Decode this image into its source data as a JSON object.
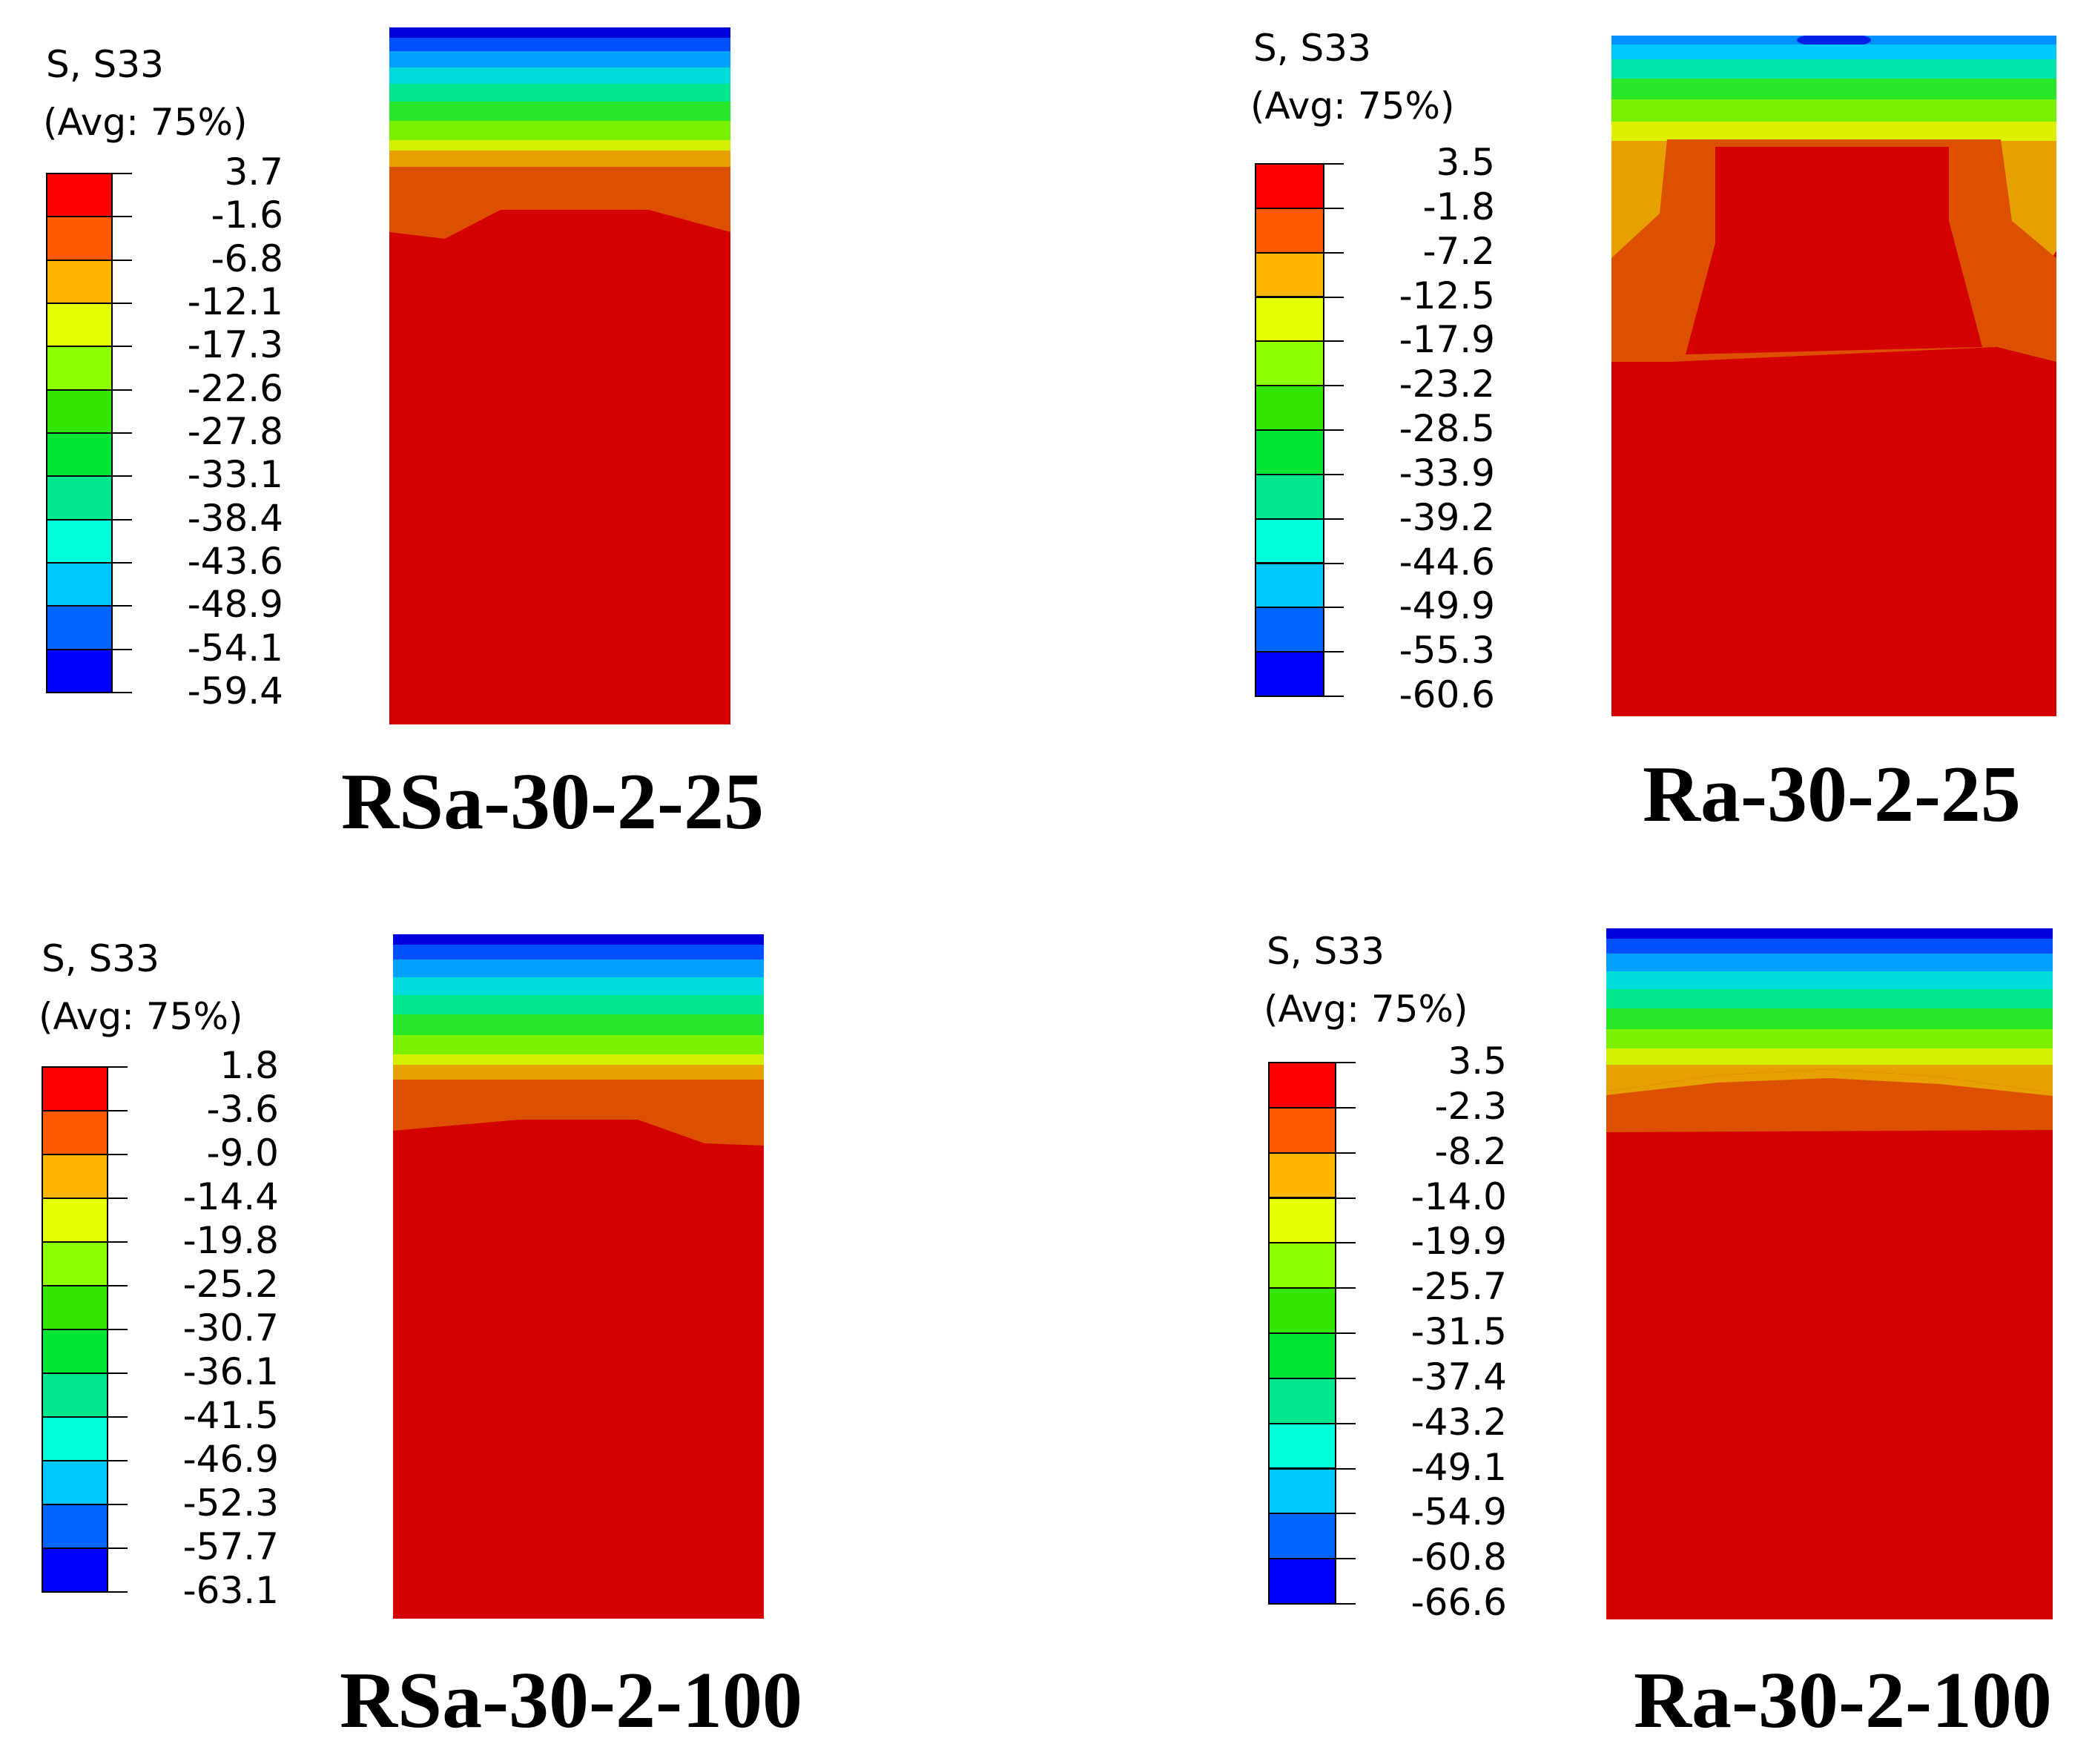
{
  "figure": {
    "panels": [
      {
        "caption": "RSa-30-2-25",
        "legend_title_line1": "S, S33",
        "legend_title_line2": "(Avg: 75%)",
        "ticks": [
          "3.7",
          "-1.6",
          "-6.8",
          "-12.1",
          "-17.3",
          "-22.6",
          "-27.8",
          "-33.1",
          "-38.4",
          "-43.6",
          "-48.9",
          "-54.1",
          "-59.4"
        ]
      },
      {
        "caption": "Ra-30-2-25",
        "legend_title_line1": "S, S33",
        "legend_title_line2": "(Avg: 75%)",
        "ticks": [
          "3.5",
          "-1.8",
          "-7.2",
          "-12.5",
          "-17.9",
          "-23.2",
          "-28.5",
          "-33.9",
          "-39.2",
          "-44.6",
          "-49.9",
          "-55.3",
          "-60.6"
        ]
      },
      {
        "caption": "RSa-30-2-100",
        "legend_title_line1": "S, S33",
        "legend_title_line2": "(Avg: 75%)",
        "ticks": [
          "1.8",
          "-3.6",
          "-9.0",
          "-14.4",
          "-19.8",
          "-25.2",
          "-30.7",
          "-36.1",
          "-41.5",
          "-46.9",
          "-52.3",
          "-57.7",
          "-63.1"
        ]
      },
      {
        "caption": "Ra-30-2-100",
        "legend_title_line1": "S, S33",
        "legend_title_line2": "(Avg: 75%)",
        "ticks": [
          "3.5",
          "-2.3",
          "-8.2",
          "-14.0",
          "-19.9",
          "-25.7",
          "-31.5",
          "-37.4",
          "-43.2",
          "-49.1",
          "-54.9",
          "-60.8",
          "-66.6"
        ]
      }
    ],
    "colors": {
      "bands": [
        "#ff0000",
        "#ff5a00",
        "#ffb400",
        "#e6ff00",
        "#8cff00",
        "#32e600",
        "#00e632",
        "#00e68c",
        "#00ffdc",
        "#00c8ff",
        "#0064ff",
        "#0000ff"
      ],
      "contour_red": "#d40000",
      "contour_orange": "#dc5000",
      "contour_amber": "#e6a000"
    }
  }
}
